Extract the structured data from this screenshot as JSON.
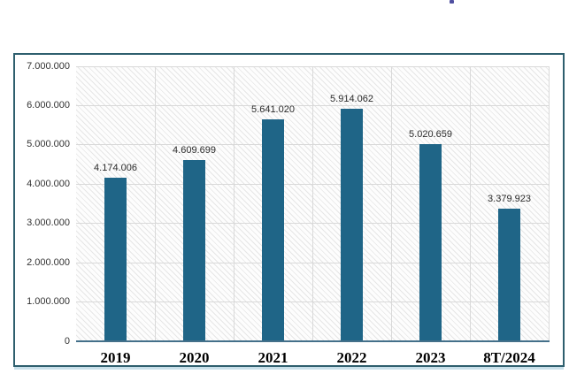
{
  "page": {
    "background_color": "#ffffff",
    "artifact_color": "#30308f"
  },
  "frame": {
    "border_color": "#2e5f6e",
    "underline_color": "#c9e0ea",
    "background_color": "#ffffff"
  },
  "chart_data": {
    "type": "bar",
    "title": "",
    "xlabel": "",
    "ylabel": "",
    "categories": [
      "2019",
      "2020",
      "2021",
      "2022",
      "2023",
      "8T/2024"
    ],
    "values": [
      4174006,
      4609699,
      5641020,
      5914062,
      5020659,
      3379923
    ],
    "value_labels": [
      "4.174.006",
      "4.609.699",
      "5.641.020",
      "5.914.062",
      "5.020.659",
      "3.379.923"
    ],
    "y_tick_labels": [
      "0",
      "1.000.000",
      "2.000.000",
      "3.000.000",
      "4.000.000",
      "5.000.000",
      "6.000.000",
      "7.000.000"
    ],
    "ylim": [
      0,
      7000000
    ],
    "grid": true,
    "legend_position": "none",
    "style": {
      "bar_color": "#1f6587",
      "gridline_color": "#d9d9d9",
      "axis_line_color": "#44708a",
      "plot_hatch_color": "#e6e6e6",
      "tick_label_color": "#333333",
      "value_label_color": "#2b2b2b",
      "category_label_color": "#000000"
    }
  }
}
